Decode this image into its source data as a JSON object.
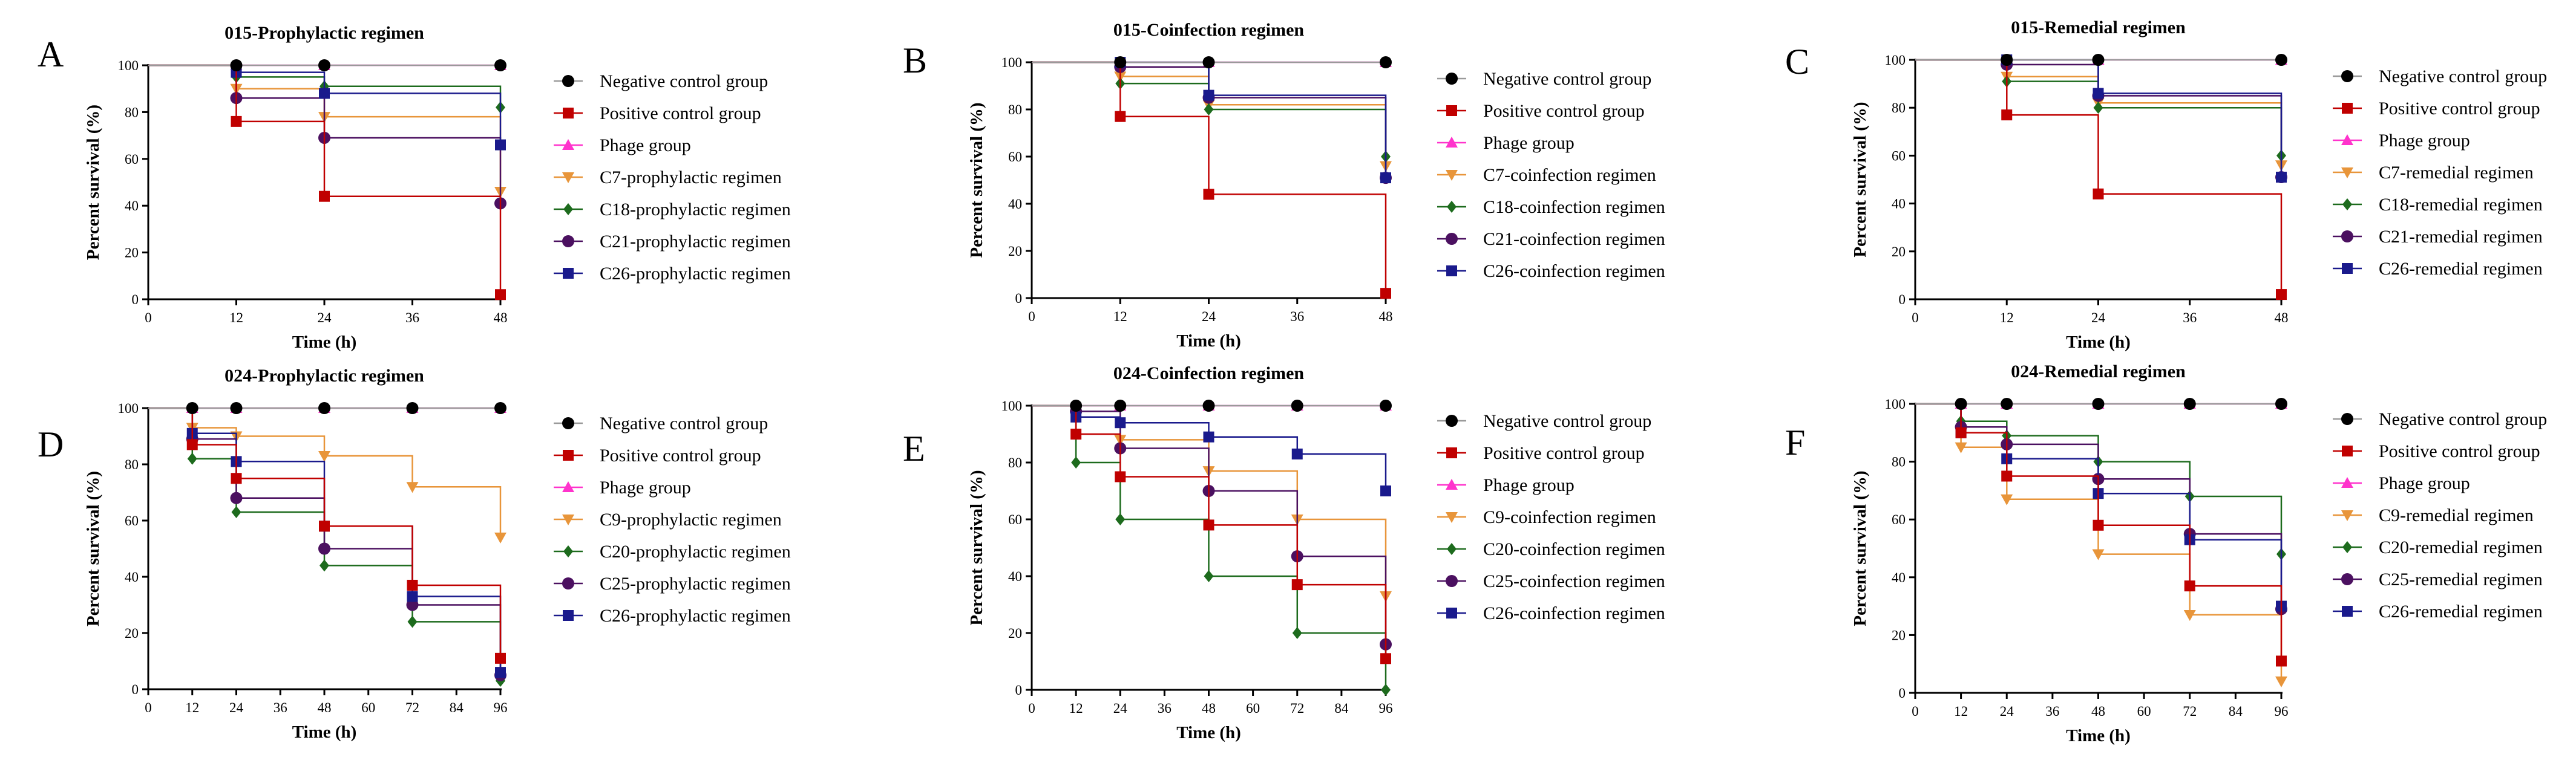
{
  "palette": {
    "Negative control group": "#000000",
    "Positive control group": "#c00000",
    "Phage group": "#ff33cc",
    "prophylactic_c1": "#e8953a",
    "c2": "#1d6b1d",
    "c3": "#4b1060",
    "c4": "#1a1a8c"
  },
  "chart_data": [
    {
      "letter": "A",
      "type": "line",
      "title": "015-Prophylactic regimen",
      "xlabel": "Time (h)",
      "ylabel": "Percent survival (%)",
      "xlim": [
        0,
        48
      ],
      "ylim": [
        0,
        100
      ],
      "xticks": [
        0,
        12,
        24,
        36,
        48
      ],
      "yticks": [
        0,
        20,
        40,
        60,
        80,
        100
      ],
      "series": [
        {
          "name": "Negative control group",
          "marker": "circle",
          "color": "#000000",
          "x": [
            12,
            24,
            48
          ],
          "y": [
            100,
            100,
            100
          ]
        },
        {
          "name": "Positive control group",
          "marker": "square",
          "color": "#c00000",
          "x": [
            12,
            24,
            48
          ],
          "y": [
            76,
            44,
            2
          ]
        },
        {
          "name": "Phage group",
          "marker": "triangle-up",
          "color": "#ff33cc",
          "x": [
            12,
            24,
            48
          ],
          "y": [
            100,
            100,
            100
          ]
        },
        {
          "name": "C7-prophylactic regimen",
          "marker": "triangle-down",
          "color": "#e8953a",
          "x": [
            12,
            24,
            48
          ],
          "y": [
            90,
            78,
            46
          ]
        },
        {
          "name": "C18-prophylactic regimen",
          "marker": "diamond",
          "color": "#1d6b1d",
          "x": [
            12,
            24,
            48
          ],
          "y": [
            95,
            91,
            82
          ]
        },
        {
          "name": "C21-prophylactic regimen",
          "marker": "circle",
          "color": "#4b1060",
          "x": [
            12,
            24,
            48
          ],
          "y": [
            86,
            69,
            41
          ]
        },
        {
          "name": "C26-prophylactic regimen",
          "marker": "square",
          "color": "#1a1a8c",
          "x": [
            12,
            24,
            48
          ],
          "y": [
            97,
            88,
            66
          ]
        }
      ]
    },
    {
      "letter": "B",
      "type": "line",
      "title": "015-Coinfection regimen",
      "xlabel": "Time (h)",
      "ylabel": "Percent survival (%)",
      "xlim": [
        0,
        48
      ],
      "ylim": [
        0,
        100
      ],
      "xticks": [
        0,
        12,
        24,
        36,
        48
      ],
      "yticks": [
        0,
        20,
        40,
        60,
        80,
        100
      ],
      "series": [
        {
          "name": "Negative control group",
          "marker": "circle",
          "color": "#000000",
          "x": [
            12,
            24,
            48
          ],
          "y": [
            100,
            100,
            100
          ]
        },
        {
          "name": "Positive control group",
          "marker": "square",
          "color": "#c00000",
          "x": [
            12,
            24,
            48
          ],
          "y": [
            77,
            44,
            2
          ]
        },
        {
          "name": "Phage group",
          "marker": "triangle-up",
          "color": "#ff33cc",
          "x": [
            12,
            24,
            48
          ],
          "y": [
            100,
            100,
            100
          ]
        },
        {
          "name": "C7-coinfection regimen",
          "marker": "triangle-down",
          "color": "#e8953a",
          "x": [
            12,
            24,
            48
          ],
          "y": [
            94,
            82,
            56
          ]
        },
        {
          "name": "C18-coinfection regimen",
          "marker": "diamond",
          "color": "#1d6b1d",
          "x": [
            12,
            24,
            48
          ],
          "y": [
            91,
            80,
            60
          ]
        },
        {
          "name": "C21-coinfection regimen",
          "marker": "circle",
          "color": "#4b1060",
          "x": [
            12,
            24,
            48
          ],
          "y": [
            98,
            85,
            51
          ]
        },
        {
          "name": "C26-coinfection regimen",
          "marker": "square",
          "color": "#1a1a8c",
          "x": [
            12,
            24,
            48
          ],
          "y": [
            100,
            86,
            51
          ]
        }
      ]
    },
    {
      "letter": "C",
      "type": "line",
      "title": "015-Remedial regimen",
      "xlabel": "Time (h)",
      "ylabel": "Percent survival (%)",
      "xlim": [
        0,
        48
      ],
      "ylim": [
        0,
        100
      ],
      "xticks": [
        0,
        12,
        24,
        36,
        48
      ],
      "yticks": [
        0,
        20,
        40,
        60,
        80,
        100
      ],
      "series": [
        {
          "name": "Negative control group",
          "marker": "circle",
          "color": "#000000",
          "x": [
            12,
            24,
            48
          ],
          "y": [
            100,
            100,
            100
          ]
        },
        {
          "name": "Positive control group",
          "marker": "square",
          "color": "#c00000",
          "x": [
            12,
            24,
            48
          ],
          "y": [
            77,
            44,
            2
          ]
        },
        {
          "name": "Phage group",
          "marker": "triangle-up",
          "color": "#ff33cc",
          "x": [
            12,
            24,
            48
          ],
          "y": [
            100,
            100,
            100
          ]
        },
        {
          "name": "C7-remedial regimen",
          "marker": "triangle-down",
          "color": "#e8953a",
          "x": [
            12,
            24,
            48
          ],
          "y": [
            93,
            82,
            56
          ]
        },
        {
          "name": "C18-remedial regimen",
          "marker": "diamond",
          "color": "#1d6b1d",
          "x": [
            12,
            24,
            48
          ],
          "y": [
            91,
            80,
            60
          ]
        },
        {
          "name": "C21-remedial regimen",
          "marker": "circle",
          "color": "#4b1060",
          "x": [
            12,
            24,
            48
          ],
          "y": [
            98,
            85,
            51
          ]
        },
        {
          "name": "C26-remedial regimen",
          "marker": "square",
          "color": "#1a1a8c",
          "x": [
            12,
            24,
            48
          ],
          "y": [
            100,
            86,
            51
          ]
        }
      ]
    },
    {
      "letter": "D",
      "type": "line",
      "title": "024-Prophylactic regimen",
      "xlabel": "Time (h)",
      "ylabel": "Percent survival (%)",
      "xlim": [
        0,
        96
      ],
      "ylim": [
        0,
        100
      ],
      "xticks": [
        0,
        12,
        24,
        36,
        48,
        60,
        72,
        84,
        96
      ],
      "yticks": [
        0,
        20,
        40,
        60,
        80,
        100
      ],
      "series": [
        {
          "name": "Negative control group",
          "marker": "circle",
          "color": "#000000",
          "x": [
            12,
            24,
            48,
            72,
            96
          ],
          "y": [
            100,
            100,
            100,
            100,
            100
          ]
        },
        {
          "name": "Positive control group",
          "marker": "square",
          "color": "#c00000",
          "x": [
            12,
            24,
            48,
            72,
            96
          ],
          "y": [
            87,
            75,
            58,
            37,
            11
          ]
        },
        {
          "name": "Phage group",
          "marker": "triangle-up",
          "color": "#ff33cc",
          "x": [
            12,
            24,
            48,
            72,
            96
          ],
          "y": [
            100,
            100,
            100,
            100,
            100
          ]
        },
        {
          "name": "C9-prophylactic regimen",
          "marker": "triangle-down",
          "color": "#e8953a",
          "x": [
            12,
            24,
            48,
            72,
            96
          ],
          "y": [
            93,
            90,
            83,
            72,
            54
          ]
        },
        {
          "name": "C20-prophylactic regimen",
          "marker": "diamond",
          "color": "#1d6b1d",
          "x": [
            12,
            24,
            48,
            72,
            96
          ],
          "y": [
            82,
            63,
            44,
            24,
            3
          ]
        },
        {
          "name": "C25-prophylactic regimen",
          "marker": "circle",
          "color": "#4b1060",
          "x": [
            12,
            24,
            48,
            72,
            96
          ],
          "y": [
            89,
            68,
            50,
            30,
            5
          ]
        },
        {
          "name": "C26-prophylactic regimen",
          "marker": "square",
          "color": "#1a1a8c",
          "x": [
            12,
            24,
            48,
            72,
            96
          ],
          "y": [
            91,
            81,
            58,
            33,
            6
          ]
        }
      ]
    },
    {
      "letter": "E",
      "type": "line",
      "title": "024-Coinfection regimen",
      "xlabel": "Time (h)",
      "ylabel": "Percent survival (%)",
      "xlim": [
        0,
        96
      ],
      "ylim": [
        0,
        100
      ],
      "xticks": [
        0,
        12,
        24,
        36,
        48,
        60,
        72,
        84,
        96
      ],
      "yticks": [
        0,
        20,
        40,
        60,
        80,
        100
      ],
      "series": [
        {
          "name": "Negative control group",
          "marker": "circle",
          "color": "#000000",
          "x": [
            12,
            24,
            48,
            72,
            96
          ],
          "y": [
            100,
            100,
            100,
            100,
            100
          ]
        },
        {
          "name": "Positive control group",
          "marker": "square",
          "color": "#c00000",
          "x": [
            12,
            24,
            48,
            72,
            96
          ],
          "y": [
            90,
            75,
            58,
            37,
            11
          ]
        },
        {
          "name": "Phage group",
          "marker": "triangle-up",
          "color": "#ff33cc",
          "x": [
            12,
            24,
            48,
            72,
            96
          ],
          "y": [
            100,
            100,
            100,
            100,
            100
          ]
        },
        {
          "name": "C9-coinfection regimen",
          "marker": "triangle-down",
          "color": "#e8953a",
          "x": [
            12,
            24,
            48,
            72,
            96
          ],
          "y": [
            96,
            88,
            77,
            60,
            33
          ]
        },
        {
          "name": "C20-coinfection regimen",
          "marker": "diamond",
          "color": "#1d6b1d",
          "x": [
            12,
            24,
            48,
            72,
            96
          ],
          "y": [
            80,
            60,
            40,
            20,
            0
          ]
        },
        {
          "name": "C25-coinfection regimen",
          "marker": "circle",
          "color": "#4b1060",
          "x": [
            12,
            24,
            48,
            72,
            96
          ],
          "y": [
            98,
            85,
            70,
            47,
            16
          ]
        },
        {
          "name": "C26-coinfection regimen",
          "marker": "square",
          "color": "#1a1a8c",
          "x": [
            12,
            24,
            48,
            72,
            96
          ],
          "y": [
            96,
            94,
            89,
            83,
            70
          ]
        }
      ]
    },
    {
      "letter": "F",
      "type": "line",
      "title": "024-Remedial regimen",
      "xlabel": "Time (h)",
      "ylabel": "Percent survival (%)",
      "xlim": [
        0,
        96
      ],
      "ylim": [
        0,
        100
      ],
      "xticks": [
        0,
        12,
        24,
        36,
        48,
        60,
        72,
        84,
        96
      ],
      "yticks": [
        0,
        20,
        40,
        60,
        80,
        100
      ],
      "series": [
        {
          "name": "Negative control group",
          "marker": "circle",
          "color": "#000000",
          "x": [
            12,
            24,
            48,
            72,
            96
          ],
          "y": [
            100,
            100,
            100,
            100,
            100
          ]
        },
        {
          "name": "Positive control group",
          "marker": "square",
          "color": "#c00000",
          "x": [
            12,
            24,
            48,
            72,
            96
          ],
          "y": [
            90,
            75,
            58,
            37,
            11
          ]
        },
        {
          "name": "Phage group",
          "marker": "triangle-up",
          "color": "#ff33cc",
          "x": [
            12,
            24,
            48,
            72,
            96
          ],
          "y": [
            100,
            100,
            100,
            100,
            100
          ]
        },
        {
          "name": "C9-remedial regimen",
          "marker": "triangle-down",
          "color": "#e8953a",
          "x": [
            12,
            24,
            48,
            72,
            96
          ],
          "y": [
            85,
            67,
            48,
            27,
            4
          ]
        },
        {
          "name": "C20-remedial regimen",
          "marker": "diamond",
          "color": "#1d6b1d",
          "x": [
            12,
            24,
            48,
            72,
            96
          ],
          "y": [
            94,
            89,
            80,
            68,
            48
          ]
        },
        {
          "name": "C25-remedial regimen",
          "marker": "circle",
          "color": "#4b1060",
          "x": [
            12,
            24,
            48,
            72,
            96
          ],
          "y": [
            92,
            86,
            74,
            55,
            29
          ]
        },
        {
          "name": "C26-remedial regimen",
          "marker": "square",
          "color": "#1a1a8c",
          "x": [
            12,
            24,
            48,
            72,
            96
          ],
          "y": [
            90,
            81,
            69,
            53,
            30
          ]
        }
      ]
    }
  ]
}
